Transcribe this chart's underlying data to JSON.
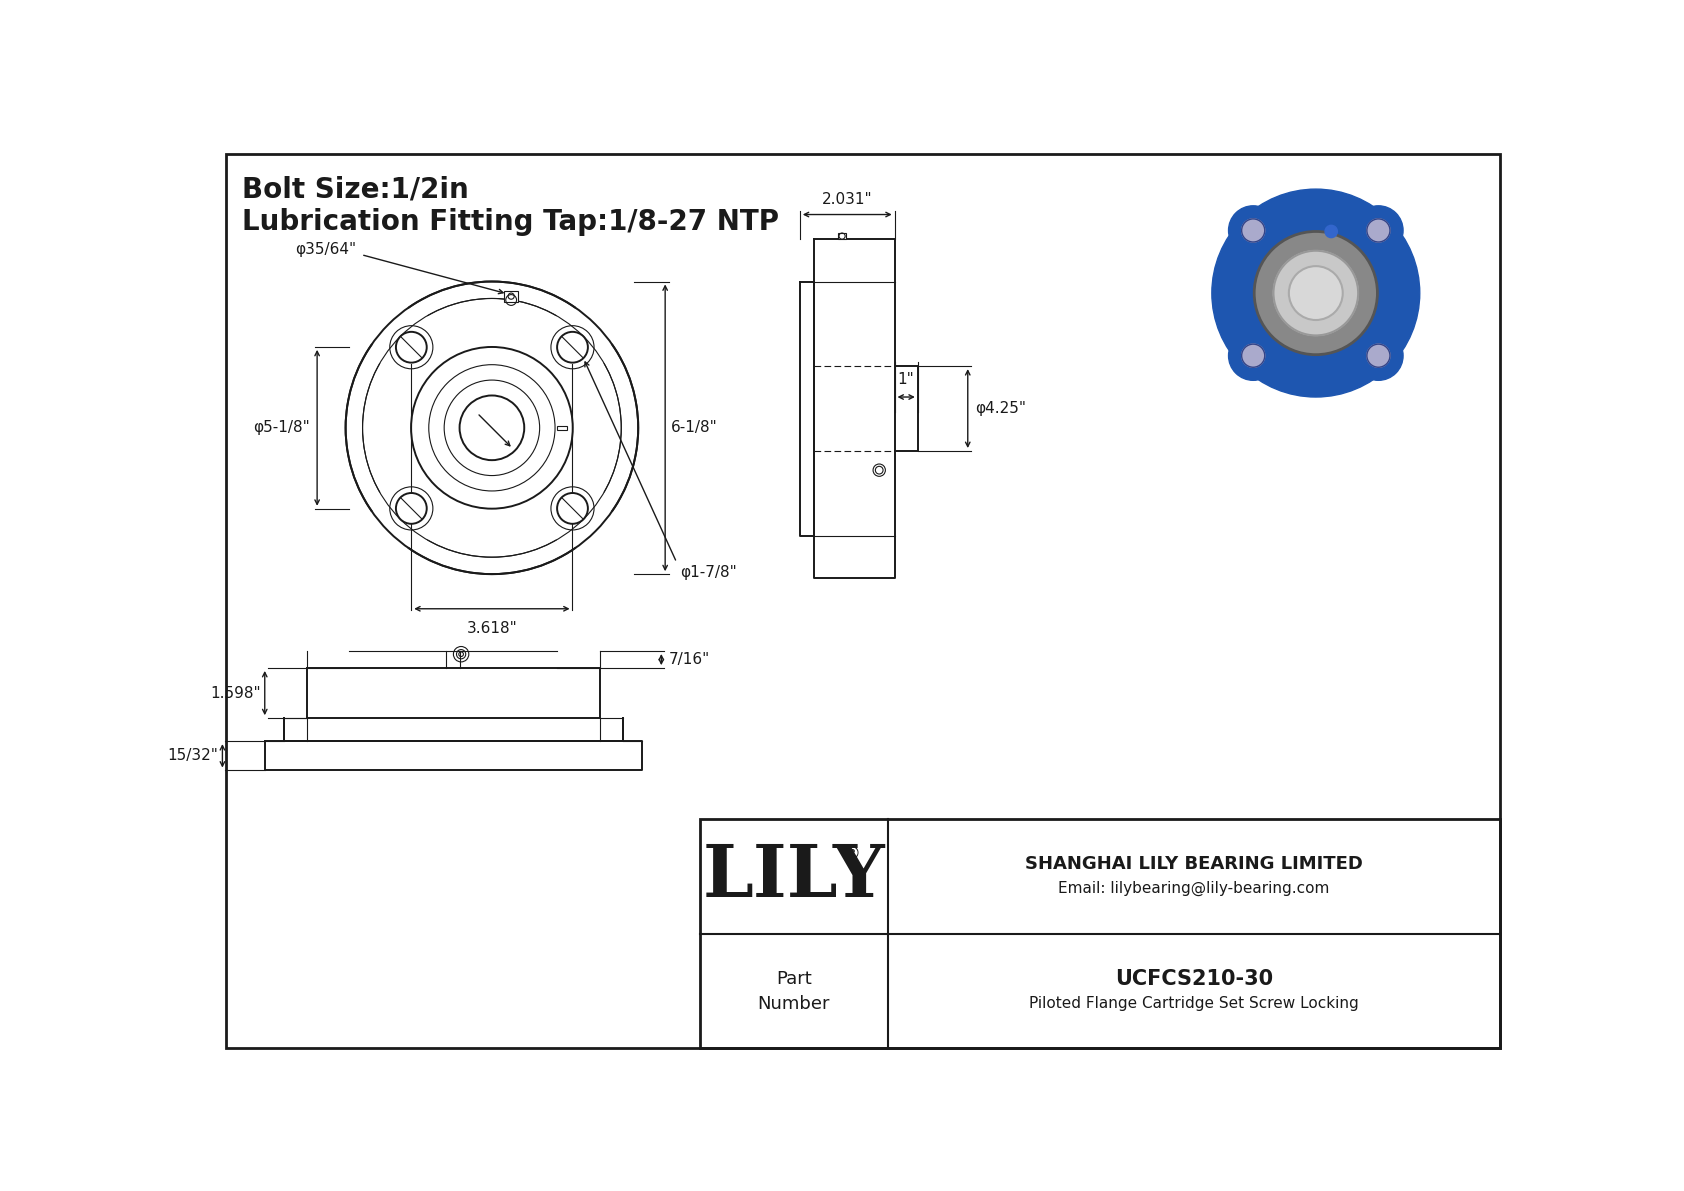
{
  "bg_color": "#ffffff",
  "line_color": "#1a1a1a",
  "title_line1": "Bolt Size:1/2in",
  "title_line2": "Lubrication Fitting Tap:1/8-27 NTP",
  "dim_phi_bore": "φ35/64\"",
  "dim_phi_flange": "φ5-1/8\"",
  "dim_height": "6-1/8\"",
  "dim_width": "3.618\"",
  "dim_bolt_hole": "φ1-7/8\"",
  "dim_side_width": "2.031\"",
  "dim_side_depth": "1\"",
  "dim_phi_outer": "φ4.25\"",
  "dim_side_top": "7/16\"",
  "dim_side_mid": "1.598\"",
  "dim_side_bot": "15/32\"",
  "company": "SHANGHAI LILY BEARING LIMITED",
  "email": "Email: lilybearing@lily-bearing.com",
  "part_label": "Part\nNumber",
  "part_number": "UCFCS210-30",
  "part_desc": "Piloted Flange Cartridge Set Screw Locking",
  "lily_logo": "LILY",
  "lily_reg": "®"
}
